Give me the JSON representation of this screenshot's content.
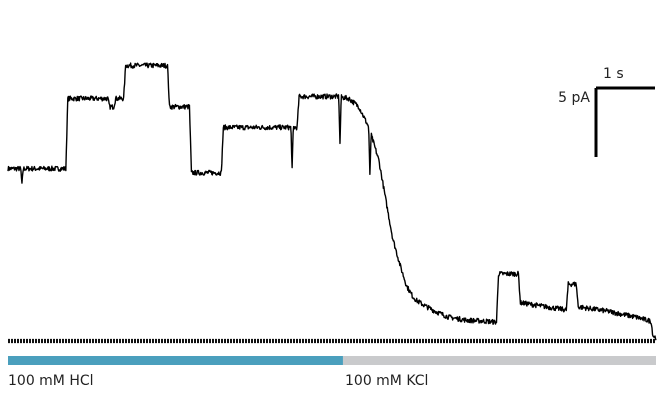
{
  "chart_data": {
    "type": "line",
    "title": "",
    "xlabel": "",
    "ylabel": "",
    "units": {
      "x": "s",
      "y": "pA"
    },
    "baseline_pA": 0,
    "xlim": [
      0,
      6.5
    ],
    "ylim": [
      -0.3,
      15.8
    ],
    "scale_bar": {
      "time_label": "1 s",
      "time_value_s": 1,
      "current_label": "5 pA",
      "current_value_pA": 5
    },
    "series": [
      {
        "noise_pA": 0.12,
        "x": [
          0,
          0.58,
          0.6,
          1.0,
          1.02,
          1.06,
          1.08,
          1.16,
          1.18,
          1.6,
          1.62,
          1.82,
          1.84,
          2.14,
          2.16,
          2.9,
          2.92,
          3.2,
          3.3,
          3.42,
          3.52,
          3.62,
          3.72,
          3.8,
          3.86,
          3.94,
          4.0,
          4.06,
          4.1,
          4.2,
          4.3,
          4.42,
          4.6,
          4.8,
          4.9,
          4.92,
          5.12,
          5.14,
          5.4,
          5.6,
          5.62,
          5.7,
          5.72,
          6.0,
          6.3,
          6.45,
          6.47,
          6.5
        ],
        "y": [
          8.3,
          8.3,
          11.7,
          11.7,
          11.3,
          11.3,
          11.7,
          11.7,
          13.3,
          13.3,
          11.3,
          11.3,
          8.1,
          8.1,
          10.3,
          10.3,
          11.8,
          11.8,
          11.8,
          11.7,
          11.3,
          10.3,
          8.7,
          6.5,
          4.9,
          3.5,
          2.6,
          2.1,
          1.9,
          1.6,
          1.35,
          1.1,
          0.95,
          0.9,
          0.85,
          3.2,
          3.2,
          1.8,
          1.6,
          1.45,
          2.7,
          2.7,
          1.6,
          1.4,
          1.1,
          0.9,
          0.2,
          0.1
        ]
      }
    ],
    "spikes": [
      {
        "x": 0.14,
        "depth_pA": 0.8
      },
      {
        "x": 2.85,
        "depth_pA": 2.0
      },
      {
        "x": 3.33,
        "depth_pA": 2.3
      },
      {
        "x": 3.63,
        "depth_pA": 2.2
      }
    ],
    "conditions": [
      {
        "label": "100 mM HCl",
        "start_s": 0.0,
        "end_s": 3.36,
        "color": "#4a9fbd"
      },
      {
        "label": "100 mM KCl",
        "start_s": 3.36,
        "end_s": 6.5,
        "color": "#c9cacc"
      }
    ]
  }
}
